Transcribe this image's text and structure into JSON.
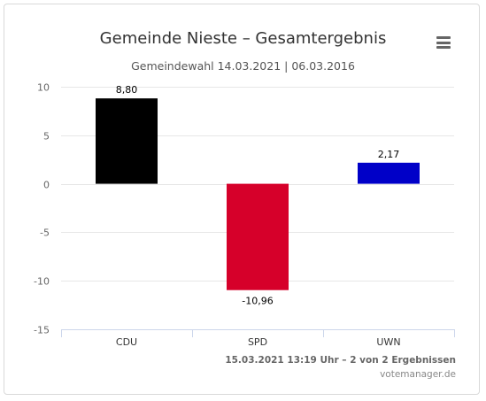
{
  "header": {
    "title": "Gemeinde Nieste – Gesamtergebnis",
    "subtitle": "Gemeindewahl 14.03.2021 | 06.03.2016"
  },
  "footer": {
    "status": "15.03.2021 13:19 Uhr – 2 von 2 Ergebnissen",
    "source": "votemanager.de"
  },
  "chart_data": {
    "type": "bar",
    "title": "Gemeinde Nieste – Gesamtergebnis",
    "subtitle": "Gemeindewahl 14.03.2021 | 06.03.2016",
    "categories": [
      "CDU",
      "SPD",
      "UWN"
    ],
    "values": [
      8.8,
      -10.96,
      2.17
    ],
    "value_labels": [
      "8,80",
      "-10,96",
      "2,17"
    ],
    "colors": [
      "#000000",
      "#d6002a",
      "#0000c8"
    ],
    "yticks": [
      10,
      5,
      0,
      -5,
      -10,
      -15
    ],
    "ytick_labels": [
      "10",
      "5",
      "0",
      "-5",
      "-10",
      "-15"
    ],
    "ylim": [
      -15,
      10
    ],
    "grid": true,
    "legend": "none"
  }
}
